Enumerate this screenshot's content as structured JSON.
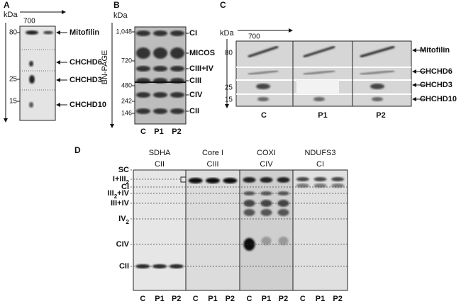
{
  "panel_a": {
    "letter": "A",
    "unit": "kDa",
    "lane_label": "700",
    "markers": [
      "80",
      "25",
      "15"
    ],
    "proteins": [
      "Mitofilin",
      "CHCHD6",
      "CHCHD3",
      "CHCHD10"
    ]
  },
  "panel_b": {
    "letter": "B",
    "unit": "kDa",
    "side_label": "BN-PAGE",
    "markers": [
      "1,048",
      "720",
      "480",
      "242",
      "146"
    ],
    "complexes": [
      "CI",
      "MICOS",
      "CIII+IV",
      "CIII",
      "CIV",
      "CII"
    ],
    "lanes": [
      "C",
      "P1",
      "P2"
    ]
  },
  "panel_c": {
    "letter": "C",
    "unit": "kDa",
    "lane_label": "700",
    "markers": [
      "80",
      "25",
      "15"
    ],
    "proteins": [
      "Mitofilin",
      "CHCHD6",
      "CHCHD3",
      "CHCHD10"
    ],
    "samples": [
      "C",
      "P1",
      "P2"
    ]
  },
  "panel_d": {
    "letter": "D",
    "blots": [
      {
        "antibody": "SDHA",
        "complex": "CII",
        "lanes": [
          "C",
          "P1",
          "P2"
        ]
      },
      {
        "antibody": "Core I",
        "complex": "CIII",
        "lanes": [
          "C",
          "P1",
          "P2"
        ]
      },
      {
        "antibody": "COXI",
        "complex": "CIV",
        "lanes": [
          "C",
          "P1",
          "P2"
        ]
      },
      {
        "antibody": "NDUFS3",
        "complex": "CI",
        "lanes": [
          "C",
          "P1",
          "P2"
        ]
      }
    ],
    "bands": [
      {
        "text": "SC"
      },
      {
        "text": "I+III",
        "sub": "2"
      },
      {
        "text": "CI"
      },
      {
        "text": "III",
        "sub": "2",
        "rest": "+IV"
      },
      {
        "text": "III+IV"
      },
      {
        "text": "IV",
        "sub": "2"
      },
      {
        "text": "CIV"
      },
      {
        "text": "CII"
      }
    ]
  }
}
